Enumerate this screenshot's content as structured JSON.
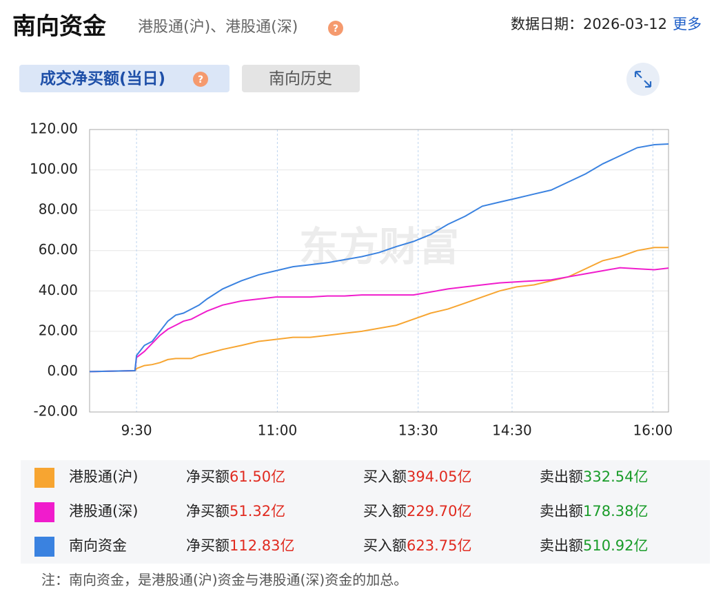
{
  "header": {
    "title": "南向资金",
    "subtitle": "港股通(沪)、港股通(深)",
    "date_label": "数据日期：",
    "date": "2026-03-12",
    "more": "更多"
  },
  "tabs": [
    "成交净买额(当日)",
    "南向历史"
  ],
  "chart_data": {
    "type": "line",
    "watermark": "东方财富",
    "x": [
      0,
      29,
      30,
      35,
      40,
      45,
      50,
      55,
      60,
      65,
      70,
      75,
      85,
      97,
      108,
      119,
      130,
      141,
      152,
      163,
      174,
      185,
      196,
      207,
      218,
      229,
      240,
      251,
      262,
      273,
      284,
      295,
      306,
      317,
      328,
      339,
      350,
      361,
      370
    ],
    "xlim": [
      0,
      370
    ],
    "xticks": [
      {
        "value": 30,
        "label": "9:30"
      },
      {
        "value": 120,
        "label": "11:00"
      },
      {
        "value": 210,
        "label": "13:30"
      },
      {
        "value": 270,
        "label": "14:30"
      },
      {
        "value": 360,
        "label": "16:00"
      }
    ],
    "ylim": [
      -20,
      120
    ],
    "yticks": [
      {
        "value": -20,
        "label": "-20.00"
      },
      {
        "value": 0,
        "label": "0.00"
      },
      {
        "value": 20,
        "label": "20.00"
      },
      {
        "value": 40,
        "label": "40.00"
      },
      {
        "value": 60,
        "label": "60.00"
      },
      {
        "value": 80,
        "label": "80.00"
      },
      {
        "value": 100,
        "label": "100.00"
      },
      {
        "value": 120,
        "label": "120.00"
      }
    ],
    "grid": true,
    "series": [
      {
        "name": "港股通(沪)",
        "color": "#f7a531",
        "values": [
          0,
          0.5,
          1.5,
          3,
          3.5,
          4.5,
          6,
          6.5,
          6.5,
          6.5,
          8,
          9,
          11,
          13,
          15,
          16,
          17,
          17,
          18,
          19,
          20,
          21.5,
          23,
          26,
          29,
          31,
          34,
          37,
          40,
          42,
          43,
          45,
          47,
          51,
          55,
          57,
          60,
          61.5,
          61.5
        ]
      },
      {
        "name": "港股通(深)",
        "color": "#f01ccc",
        "values": [
          0,
          0.5,
          7,
          10,
          14,
          18,
          21,
          23,
          25,
          26,
          28,
          30,
          33,
          35,
          36,
          37,
          37,
          37,
          37.5,
          37.5,
          38,
          38,
          38,
          38,
          39.5,
          41,
          42,
          43,
          44,
          44.5,
          45,
          45.5,
          47,
          48.5,
          50,
          51.5,
          51,
          50.5,
          51.32
        ]
      },
      {
        "name": "南向资金",
        "color": "#3a82e0",
        "values": [
          0,
          0.5,
          8,
          13,
          15,
          20,
          25,
          28,
          29,
          31,
          33,
          36,
          41,
          45,
          48,
          50,
          52,
          53,
          54,
          55.5,
          57,
          59,
          62,
          64.5,
          68,
          73,
          77,
          82,
          84,
          86,
          88,
          90,
          94,
          98,
          103,
          107,
          111,
          112.5,
          112.83
        ]
      }
    ]
  },
  "summary": {
    "labels": {
      "net": "净买额",
      "buy": "买入额",
      "sell": "卖出额"
    },
    "rows": [
      {
        "net": "61.50亿",
        "buy": "394.05亿",
        "sell": "332.54亿"
      },
      {
        "net": "51.32亿",
        "buy": "229.70亿",
        "sell": "178.38亿"
      },
      {
        "net": "112.83亿",
        "buy": "623.75亿",
        "sell": "510.92亿"
      }
    ]
  },
  "note": "注：南向资金，是港股通(沪)资金与港股通(深)资金的加总。"
}
